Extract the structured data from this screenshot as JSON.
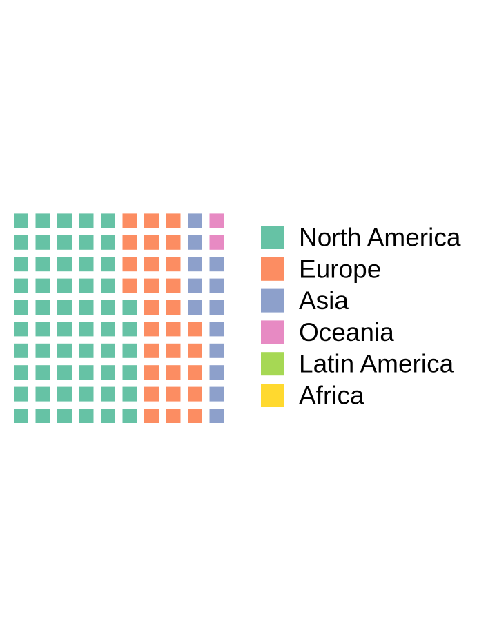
{
  "chart_data": {
    "type": "waffle",
    "title": "",
    "categories": [
      "North America",
      "Europe",
      "Asia",
      "Oceania",
      "Latin America",
      "Africa"
    ],
    "values": [
      56,
      29,
      13,
      2,
      0,
      0
    ],
    "total": 100,
    "grid": {
      "columns": 10,
      "rows": 10,
      "fill_order": "column-major, bottom-to-top"
    },
    "colors": [
      "#66c2a5",
      "#fc8d62",
      "#8da0cb",
      "#e78ac3",
      "#a6d854",
      "#ffd92f"
    ],
    "legend": {
      "position": "right"
    }
  }
}
